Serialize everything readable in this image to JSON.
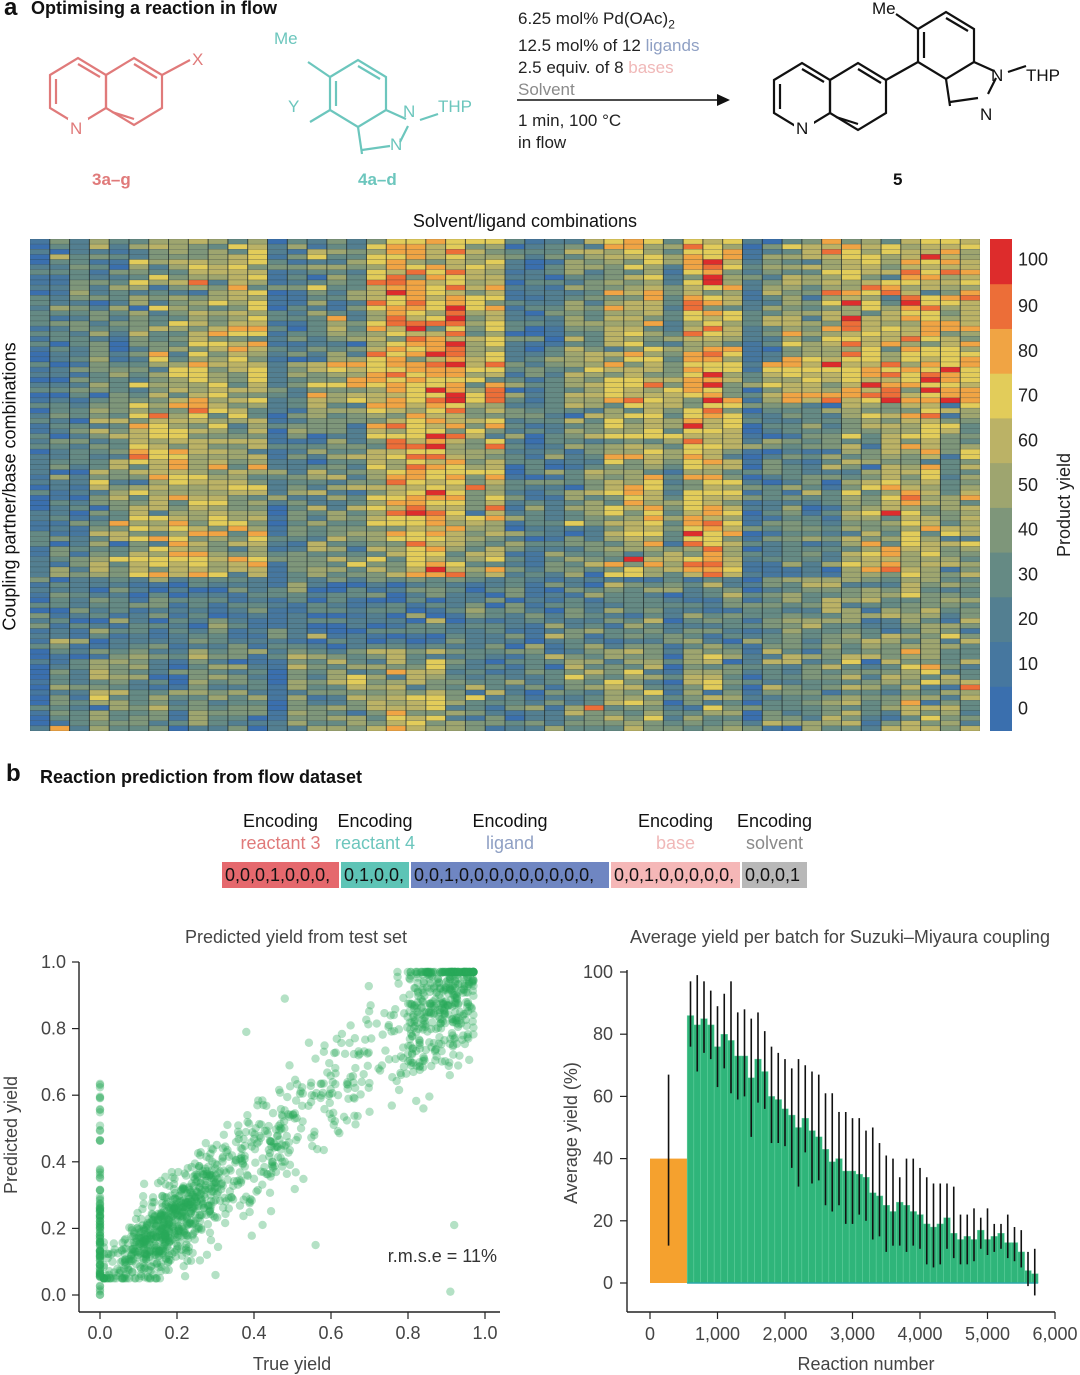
{
  "panel_a": {
    "letter": "a",
    "title": "Optimising a reaction in flow",
    "reactant3": {
      "label": "3a–g",
      "substituent": "X",
      "heteroatom": "N",
      "color": "#e07a7a"
    },
    "reactant4": {
      "label": "4a–d",
      "methyl": "Me",
      "substituent": "Y",
      "n1": "N",
      "thp": "THP",
      "n2": "N",
      "color": "#6cc6bd"
    },
    "conditions": {
      "line1_pre": "6.25 mol% Pd(OAc)",
      "line1_sub": "2",
      "line2_pre": "12.5 mol% of 12 ",
      "line2_hl": "ligands",
      "line3_pre": "2.5 equiv. of 8 ",
      "line3_hl": "bases",
      "line4": "Solvent",
      "below1": "1 min, 100 °C",
      "below2": "in flow",
      "ligand_color": "#8fa0c4",
      "base_color": "#f0b8b8",
      "solvent_color": "#8a8a8a"
    },
    "product": {
      "label": "5",
      "methyl": "Me",
      "n1": "N",
      "thp": "THP",
      "n2": "N",
      "quinoline_n": "N"
    }
  },
  "chart_data": [
    {
      "type": "heatmap",
      "title": "Solvent/ligand combinations",
      "xlabel": "Solvent/ligand combinations",
      "ylabel": "Coupling partner/base combinations",
      "n_columns": 48,
      "n_rows": 96,
      "row_blocks": [
        {
          "name": "block-1",
          "rows": 24,
          "column_means": [
            12,
            22,
            30,
            28,
            22,
            40,
            42,
            45,
            55,
            50,
            60,
            55,
            14,
            24,
            36,
            34,
            30,
            62,
            75,
            72,
            70,
            78,
            58,
            64,
            22,
            18,
            22,
            40,
            38,
            55,
            60,
            58,
            30,
            68,
            72,
            60,
            20,
            40,
            48,
            44,
            62,
            66,
            58,
            56,
            70,
            72,
            66,
            60
          ]
        },
        {
          "name": "block-2",
          "rows": 8,
          "column_means": [
            20,
            20,
            22,
            30,
            35,
            40,
            45,
            50,
            60,
            62,
            55,
            58,
            20,
            40,
            55,
            60,
            60,
            70,
            80,
            82,
            80,
            78,
            70,
            72,
            30,
            28,
            30,
            45,
            50,
            62,
            65,
            60,
            40,
            70,
            75,
            58,
            25,
            60,
            62,
            68,
            72,
            70,
            80,
            78,
            76,
            82,
            78,
            70
          ]
        },
        {
          "name": "block-3",
          "rows": 34,
          "column_means": [
            15,
            22,
            22,
            38,
            40,
            55,
            60,
            62,
            58,
            55,
            48,
            50,
            12,
            30,
            35,
            38,
            35,
            55,
            65,
            70,
            72,
            66,
            50,
            55,
            25,
            20,
            22,
            35,
            38,
            52,
            58,
            60,
            35,
            70,
            72,
            58,
            15,
            25,
            30,
            30,
            30,
            52,
            55,
            58,
            60,
            58,
            38,
            45
          ]
        },
        {
          "name": "block-4",
          "rows": 30,
          "column_means": [
            18,
            22,
            22,
            24,
            24,
            22,
            22,
            22,
            24,
            22,
            22,
            24,
            20,
            20,
            22,
            22,
            22,
            22,
            22,
            20,
            20,
            20,
            22,
            22,
            24,
            22,
            24,
            26,
            26,
            30,
            32,
            30,
            24,
            28,
            28,
            26,
            26,
            36,
            40,
            40,
            42,
            46,
            40,
            42,
            45,
            44,
            36,
            38
          ]
        }
      ],
      "bottom_subblock": {
        "rows": 16,
        "column_means": [
          10,
          28,
          20,
          42,
          38,
          32,
          28,
          22,
          40,
          35,
          30,
          28,
          10,
          36,
          30,
          40,
          42,
          50,
          55,
          52,
          48,
          40,
          32,
          30,
          20,
          30,
          26,
          38,
          40,
          48,
          48,
          40,
          20,
          40,
          42,
          36,
          15,
          38,
          30,
          36,
          40,
          48,
          35,
          40,
          50,
          46,
          38,
          40
        ]
      },
      "colorbar": {
        "label": "Product yield",
        "ticks": [
          0,
          10,
          20,
          30,
          40,
          50,
          60,
          70,
          80,
          90,
          100
        ],
        "colors": [
          "#3a6fae",
          "#46779f",
          "#537f91",
          "#658a84",
          "#7e967a",
          "#9ea56f",
          "#bbb266",
          "#e2cc5a",
          "#f0a444",
          "#ec6e38",
          "#dd2c2c"
        ]
      }
    },
    {
      "type": "scatter",
      "title": "Predicted yield from test set",
      "xlabel": "True yield",
      "ylabel": "Predicted yield",
      "xlim": [
        0.0,
        1.0
      ],
      "ylim": [
        0.0,
        1.0
      ],
      "xticks": [
        "0.0",
        "0.2",
        "0.4",
        "0.6",
        "0.8",
        "1.0"
      ],
      "yticks": [
        "0.0",
        "0.2",
        "0.4",
        "0.6",
        "0.8",
        "1.0"
      ],
      "annotation": "r.m.s.e = 11%",
      "point_color": "#27a85a",
      "n_points": 1400,
      "relationship": {
        "slope": 0.95,
        "intercept": 0.04,
        "noise_sd": 0.09
      },
      "zero_column_values": [
        0.01,
        0.02,
        0.06,
        0.08,
        0.1,
        0.12,
        0.14,
        0.16,
        0.18,
        0.2,
        0.22,
        0.24,
        0.26,
        0.29,
        0.31,
        0.36,
        0.37,
        0.47,
        0.5,
        0.55,
        0.6,
        0.63
      ],
      "outliers": [
        [
          0.92,
          0.21
        ],
        [
          0.91,
          0.01
        ],
        [
          0.38,
          0.79
        ],
        [
          0.48,
          0.89
        ],
        [
          0.3,
          0.06
        ],
        [
          0.56,
          0.15
        ]
      ]
    },
    {
      "type": "bar",
      "title": "Average yield per batch for Suzuki–Miyaura coupling",
      "xlabel": "Reaction number",
      "ylabel": "Average yield (%)",
      "xlim": [
        0,
        6000
      ],
      "ylim": [
        0,
        100
      ],
      "xticks": [
        "0",
        "1,000",
        "2,000",
        "3,000",
        "4,000",
        "5,000",
        "6,000"
      ],
      "yticks": [
        "0",
        "20",
        "40",
        "60",
        "80",
        "100"
      ],
      "initial_batch": {
        "x_start": 0,
        "x_end": 550,
        "value": 40,
        "err_low": 12,
        "err_high": 67,
        "color": "#f5a12e"
      },
      "batch_width": 100,
      "batch_start": 550,
      "batch_color": "#2fb57a",
      "series": [
        {
          "name": "batch mean",
          "values": [
            86,
            83,
            85,
            83,
            76,
            80,
            78,
            73,
            73,
            66,
            72,
            68,
            60,
            59,
            56,
            54,
            50,
            53,
            49,
            47,
            43,
            39,
            40,
            36,
            36,
            35,
            34,
            29,
            28,
            25,
            23,
            26,
            25,
            23,
            22,
            19,
            18,
            19,
            21,
            16,
            14,
            15,
            14,
            17,
            14,
            15,
            16,
            13,
            13,
            10,
            4,
            3
          ]
        },
        {
          "name": "error high",
          "values": [
            97,
            99,
            97,
            94,
            89,
            93,
            97,
            87,
            88,
            85,
            87,
            81,
            76,
            74,
            72,
            69,
            72,
            70,
            68,
            67,
            61,
            61,
            55,
            55,
            53,
            53,
            49,
            50,
            45,
            41,
            40,
            34,
            40,
            40,
            37,
            34,
            32,
            32,
            32,
            31,
            22,
            22,
            24,
            21,
            24,
            19,
            19,
            22,
            18,
            17,
            10,
            11
          ]
        },
        {
          "name": "error low",
          "values": [
            76,
            68,
            74,
            72,
            63,
            69,
            61,
            59,
            60,
            47,
            58,
            56,
            45,
            45,
            44,
            37,
            31,
            42,
            32,
            33,
            25,
            23,
            25,
            19,
            19,
            22,
            20,
            14,
            15,
            10,
            12,
            12,
            10,
            12,
            11,
            6,
            5,
            6,
            11,
            8,
            6,
            6,
            7,
            11,
            9,
            10,
            11,
            8,
            7,
            5,
            -1,
            -4
          ]
        }
      ]
    }
  ],
  "panel_b": {
    "letter": "b",
    "title": "Reaction prediction from flow dataset",
    "encodings": [
      {
        "head": "Encoding",
        "sub": "reactant 3",
        "value": "0,0,0,1,0,0,0,",
        "sub_color": "#e07a7a",
        "box_color": "#e5686d"
      },
      {
        "head": "Encoding",
        "sub": "reactant 4",
        "value": "0,1,0,0,",
        "sub_color": "#6cc6bd",
        "box_color": "#5ec4b6"
      },
      {
        "head": "Encoding",
        "sub": "ligand",
        "value": "0,0,1,0,0,0,0,0,0,0,0,0,",
        "sub_color": "#8fa0c4",
        "box_color": "#6f86c2"
      },
      {
        "head": "Encoding",
        "sub": "base",
        "value": "0,0,1,0,0,0,0,0,",
        "sub_color": "#f0b8b8",
        "box_color": "#f5b7b7"
      },
      {
        "head": "Encoding",
        "sub": "solvent",
        "value": "0,0,0,1",
        "sub_color": "#8a8a8a",
        "box_color": "#b8b8b8"
      }
    ]
  }
}
